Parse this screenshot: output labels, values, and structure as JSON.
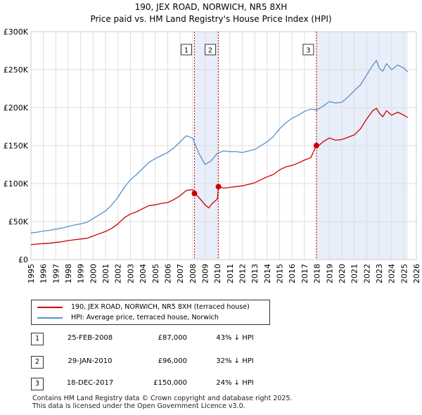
{
  "title_line1": "190, JEX ROAD, NORWICH, NR5 8XH",
  "title_line2": "Price paid vs. HM Land Registry's House Price Index (HPI)",
  "colors": {
    "price": "#cc0000",
    "hpi": "#5b8fc9",
    "shade": "#e8eefa",
    "vline": "#cc0000",
    "grid": "#dddddd"
  },
  "chart_data": {
    "type": "line",
    "xlabel": "",
    "ylabel": "",
    "xlim": [
      1995,
      2026
    ],
    "ylim": [
      0,
      300000
    ],
    "y_ticks": [
      0,
      50000,
      100000,
      150000,
      200000,
      250000,
      300000
    ],
    "y_tick_labels": [
      "£0",
      "£50K",
      "£100K",
      "£150K",
      "£200K",
      "£250K",
      "£300K"
    ],
    "x_ticks": [
      1995,
      1996,
      1997,
      1998,
      1999,
      2000,
      2001,
      2002,
      2003,
      2004,
      2005,
      2006,
      2007,
      2008,
      2009,
      2010,
      2011,
      2012,
      2013,
      2014,
      2015,
      2016,
      2017,
      2018,
      2019,
      2020,
      2021,
      2022,
      2023,
      2024,
      2025,
      2026
    ],
    "grid": true,
    "shaded_ranges": [
      [
        2008.15,
        2010.08
      ],
      [
        2017.96,
        2025.3
      ]
    ],
    "series": [
      {
        "name": "190, JEX ROAD, NORWICH, NR5 8XH (terraced house)",
        "x": [
          1995.0,
          1995.5,
          1996.0,
          1996.5,
          1997.0,
          1997.5,
          1998.0,
          1998.5,
          1999.0,
          1999.5,
          2000.0,
          2000.5,
          2001.0,
          2001.5,
          2002.0,
          2002.5,
          2003.0,
          2003.5,
          2004.0,
          2004.5,
          2005.0,
          2005.5,
          2006.0,
          2006.5,
          2007.0,
          2007.5,
          2008.0,
          2008.15,
          2008.5,
          2009.0,
          2009.3,
          2009.6,
          2010.0,
          2010.08,
          2010.5,
          2011.0,
          2011.5,
          2012.0,
          2012.5,
          2013.0,
          2013.5,
          2014.0,
          2014.5,
          2015.0,
          2015.5,
          2016.0,
          2016.5,
          2017.0,
          2017.5,
          2017.96,
          2018.0,
          2018.5,
          2019.0,
          2019.5,
          2020.0,
          2020.5,
          2021.0,
          2021.5,
          2022.0,
          2022.5,
          2022.8,
          2023.0,
          2023.3,
          2023.6,
          2024.0,
          2024.5,
          2025.0,
          2025.3
        ],
        "values": [
          19500,
          20500,
          21000,
          21500,
          22500,
          23500,
          25000,
          26000,
          27000,
          28000,
          31000,
          34000,
          37000,
          41000,
          47000,
          55000,
          60000,
          63000,
          67000,
          71000,
          72000,
          74000,
          75000,
          79000,
          84000,
          91000,
          92000,
          87000,
          82000,
          72000,
          68000,
          74000,
          80000,
          96000,
          94000,
          95000,
          96000,
          97000,
          99000,
          101000,
          105000,
          109000,
          112000,
          118000,
          122000,
          124000,
          127000,
          131000,
          134000,
          150000,
          148000,
          155000,
          160000,
          157000,
          158000,
          161000,
          164000,
          172000,
          185000,
          196000,
          199000,
          193000,
          188000,
          196000,
          190000,
          194000,
          190000,
          187000
        ]
      },
      {
        "name": "HPI: Average price, terraced house, Norwich",
        "x": [
          1995.0,
          1995.5,
          1996.0,
          1996.5,
          1997.0,
          1997.5,
          1998.0,
          1998.5,
          1999.0,
          1999.5,
          2000.0,
          2000.5,
          2001.0,
          2001.5,
          2002.0,
          2002.5,
          2003.0,
          2003.5,
          2004.0,
          2004.5,
          2005.0,
          2005.5,
          2006.0,
          2006.5,
          2007.0,
          2007.5,
          2008.0,
          2008.5,
          2009.0,
          2009.5,
          2010.0,
          2010.5,
          2011.0,
          2011.5,
          2012.0,
          2012.5,
          2013.0,
          2013.5,
          2014.0,
          2014.5,
          2015.0,
          2015.5,
          2016.0,
          2016.5,
          2017.0,
          2017.5,
          2018.0,
          2018.5,
          2019.0,
          2019.5,
          2020.0,
          2020.5,
          2021.0,
          2021.5,
          2022.0,
          2022.5,
          2022.8,
          2023.0,
          2023.3,
          2023.6,
          2024.0,
          2024.5,
          2025.0,
          2025.3
        ],
        "values": [
          35000,
          36000,
          37500,
          38500,
          40000,
          41500,
          43500,
          45500,
          47000,
          49000,
          54000,
          59000,
          64000,
          72000,
          82000,
          95000,
          105000,
          112000,
          120000,
          128000,
          133000,
          137000,
          141000,
          147000,
          155000,
          163000,
          160000,
          140000,
          125000,
          130000,
          140000,
          143000,
          142000,
          142000,
          141000,
          143000,
          145000,
          150000,
          155000,
          162000,
          172000,
          180000,
          186000,
          190000,
          195000,
          198000,
          197000,
          202000,
          208000,
          206000,
          207000,
          214000,
          222000,
          230000,
          243000,
          256000,
          262000,
          252000,
          248000,
          258000,
          250000,
          256000,
          252000,
          247000
        ]
      }
    ],
    "sale_markers": [
      {
        "label": "1",
        "x": 2008.15,
        "value": 87000
      },
      {
        "label": "2",
        "x": 2010.08,
        "value": 96000
      },
      {
        "label": "3",
        "x": 2017.96,
        "value": 150000
      }
    ]
  },
  "legend": {
    "price_label": "190, JEX ROAD, NORWICH, NR5 8XH (terraced house)",
    "hpi_label": "HPI: Average price, terraced house, Norwich"
  },
  "sales": [
    {
      "num": "1",
      "date": "25-FEB-2008",
      "price": "£87,000",
      "hpi": "43% ↓ HPI"
    },
    {
      "num": "2",
      "date": "29-JAN-2010",
      "price": "£96,000",
      "hpi": "32% ↓ HPI"
    },
    {
      "num": "3",
      "date": "18-DEC-2017",
      "price": "£150,000",
      "hpi": "24% ↓ HPI"
    }
  ],
  "footer_line1": "Contains HM Land Registry data © Crown copyright and database right 2025.",
  "footer_line2": "This data is licensed under the Open Government Licence v3.0."
}
